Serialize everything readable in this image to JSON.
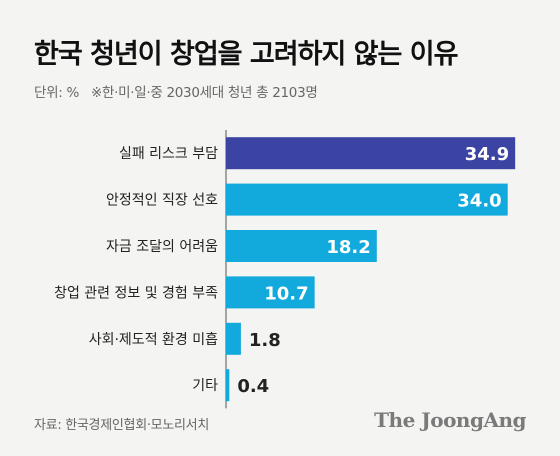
{
  "header": {
    "title": "한국 청년이 창업을 고려하지 않는 이유",
    "unit": "단위: %",
    "note": "※한·미·일·중 2030세대 청년 총 2103명"
  },
  "footer": {
    "source": "자료: 한국경제인협회·모노리서치",
    "logo": "The JoongAng"
  },
  "chart_data": {
    "type": "bar",
    "orientation": "horizontal",
    "categories": [
      "실패 리스크 부담",
      "안정적인 직장 선호",
      "자금 조달의 어려움",
      "창업 관련 정보 및 경험 부족",
      "사회·제도적 환경 미흡",
      "기타"
    ],
    "values": [
      34.9,
      34.0,
      18.2,
      10.7,
      1.8,
      0.4
    ],
    "value_labels": [
      "34.9",
      "34.0",
      "18.2",
      "10.7",
      "1.8",
      "0.4"
    ],
    "xlim": [
      0,
      35
    ],
    "grid": false,
    "colors": {
      "highlight": "#3b44a3",
      "default": "#12a9dc",
      "label_inside": "#ffffff",
      "label_outside": "#222222",
      "category_text": "#222222",
      "axis_line": "#555555"
    }
  }
}
